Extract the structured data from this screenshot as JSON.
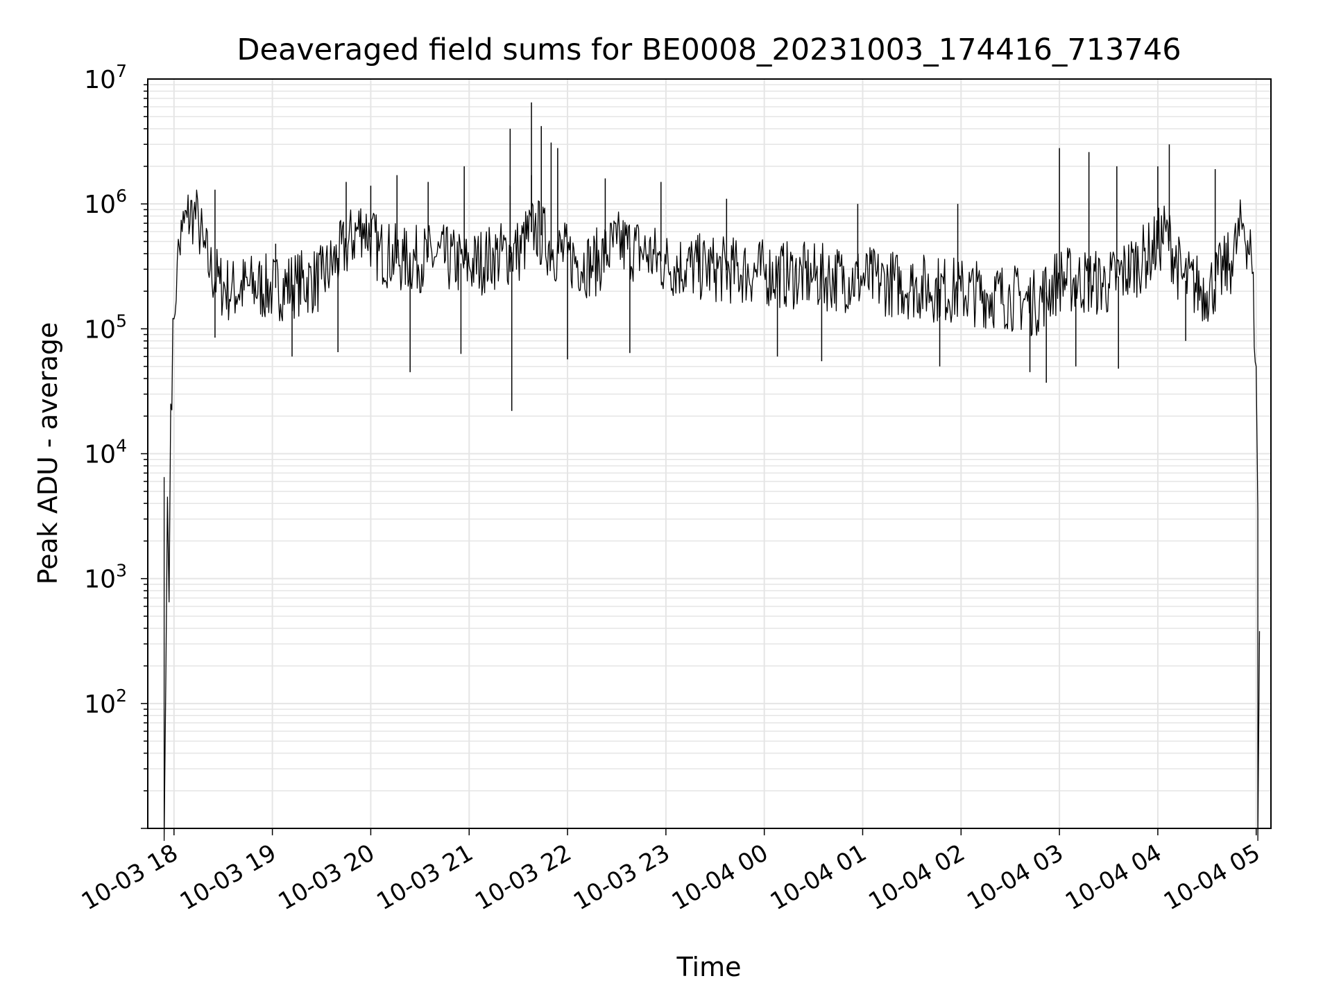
{
  "chart_data": {
    "type": "line",
    "title": "Deaveraged field sums for BE0008_20231003_174416_713746",
    "xlabel": "Time",
    "ylabel": "Peak ADU - average",
    "y_scale": "log",
    "ylim": [
      10,
      10000000
    ],
    "xlim": [
      "2023-10-03 17:44",
      "2023-10-04 05:09"
    ],
    "x_ticks": [
      "10-03 18",
      "10-03 19",
      "10-03 20",
      "10-03 21",
      "10-03 22",
      "10-03 23",
      "10-04 00",
      "10-04 01",
      "10-04 02",
      "10-04 03",
      "10-04 04",
      "10-04 05"
    ],
    "y_ticks": [
      {
        "base": "10",
        "exp": "2",
        "value": 100
      },
      {
        "base": "10",
        "exp": "3",
        "value": 1000
      },
      {
        "base": "10",
        "exp": "4",
        "value": 10000
      },
      {
        "base": "10",
        "exp": "5",
        "value": 100000
      },
      {
        "base": "10",
        "exp": "6",
        "value": 1000000
      },
      {
        "base": "10",
        "exp": "7",
        "value": 10000000
      }
    ],
    "grid": true,
    "line_color": "#000000",
    "grid_color": "#e5e5e5",
    "series": [
      {
        "points": [
          [
            "2023-10-03 17:54",
            6500
          ],
          [
            "2023-10-03 17:54",
            8
          ],
          [
            "2023-10-03 17:55",
            150
          ],
          [
            "2023-10-03 17:56",
            4500
          ],
          [
            "2023-10-03 17:57",
            650
          ],
          [
            "2023-10-03 17:58",
            25000
          ],
          [
            "2023-10-03 18:00",
            120000
          ],
          [
            "2023-10-03 18:02",
            350000
          ],
          [
            "2023-10-03 18:05",
            600000
          ],
          [
            "2023-10-03 18:08",
            780000
          ],
          [
            "2023-10-03 18:12",
            850000
          ],
          [
            "2023-10-03 18:15",
            700000
          ],
          [
            "2023-10-03 18:18",
            450000
          ],
          [
            "2023-10-03 18:22",
            300000
          ],
          [
            "2023-10-03 18:28",
            230000
          ],
          [
            "2023-10-03 18:35",
            200000
          ],
          [
            "2023-10-03 18:45",
            220000
          ],
          [
            "2023-10-03 19:00",
            210000
          ],
          [
            "2023-10-03 19:15",
            230000
          ],
          [
            "2023-10-03 19:30",
            250000
          ],
          [
            "2023-10-03 19:45",
            450000
          ],
          [
            "2023-10-03 19:55",
            700000
          ],
          [
            "2023-10-03 20:05",
            420000
          ],
          [
            "2023-10-03 20:20",
            350000
          ],
          [
            "2023-10-03 20:40",
            380000
          ],
          [
            "2023-10-03 21:00",
            320000
          ],
          [
            "2023-10-03 21:15",
            380000
          ],
          [
            "2023-10-03 21:30",
            420000
          ],
          [
            "2023-10-03 21:40",
            650000
          ],
          [
            "2023-10-03 21:50",
            450000
          ],
          [
            "2023-10-03 22:00",
            380000
          ],
          [
            "2023-10-03 22:15",
            320000
          ],
          [
            "2023-10-03 22:30",
            480000
          ],
          [
            "2023-10-03 22:45",
            420000
          ],
          [
            "2023-10-03 23:00",
            330000
          ],
          [
            "2023-10-03 23:30",
            300000
          ],
          [
            "2023-10-04 00:00",
            280000
          ],
          [
            "2023-10-04 00:30",
            260000
          ],
          [
            "2023-10-04 01:00",
            250000
          ],
          [
            "2023-10-04 01:30",
            220000
          ],
          [
            "2023-10-04 02:00",
            200000
          ],
          [
            "2023-10-04 02:30",
            180000
          ],
          [
            "2023-10-04 02:45",
            160000
          ],
          [
            "2023-10-04 03:00",
            250000
          ],
          [
            "2023-10-04 03:30",
            230000
          ],
          [
            "2023-10-04 03:55",
            400000
          ],
          [
            "2023-10-04 04:05",
            600000
          ],
          [
            "2023-10-04 04:15",
            250000
          ],
          [
            "2023-10-04 04:30",
            200000
          ],
          [
            "2023-10-04 04:45",
            350000
          ],
          [
            "2023-10-04 04:52",
            700000
          ],
          [
            "2023-10-04 04:57",
            400000
          ],
          [
            "2023-10-04 05:00",
            50000
          ],
          [
            "2023-10-04 05:01",
            3500
          ],
          [
            "2023-10-04 05:01",
            8
          ],
          [
            "2023-10-04 05:02",
            380
          ]
        ],
        "spikes": [
          [
            "2023-10-03 18:25",
            1300000
          ],
          [
            "2023-10-03 19:02",
            480000
          ],
          [
            "2023-10-03 19:45",
            1500000
          ],
          [
            "2023-10-03 20:00",
            1400000
          ],
          [
            "2023-10-03 20:16",
            1700000
          ],
          [
            "2023-10-03 20:35",
            1500000
          ],
          [
            "2023-10-03 20:57",
            2000000
          ],
          [
            "2023-10-03 21:25",
            1400000
          ],
          [
            "2023-10-03 21:38",
            1700000
          ],
          [
            "2023-10-03 21:25",
            4000000
          ],
          [
            "2023-10-03 21:38",
            6500000
          ],
          [
            "2023-10-03 21:44",
            4200000
          ],
          [
            "2023-10-03 21:50",
            3100000
          ],
          [
            "2023-10-03 21:54",
            2800000
          ],
          [
            "2023-10-03 22:23",
            1600000
          ],
          [
            "2023-10-03 22:57",
            1500000
          ],
          [
            "2023-10-03 23:37",
            1100000
          ],
          [
            "2023-10-04 00:57",
            1000000
          ],
          [
            "2023-10-04 01:58",
            1000000
          ],
          [
            "2023-10-04 03:00",
            2800000
          ],
          [
            "2023-10-04 03:18",
            2600000
          ],
          [
            "2023-10-04 03:35",
            2000000
          ],
          [
            "2023-10-04 04:00",
            2000000
          ],
          [
            "2023-10-04 04:07",
            3000000
          ],
          [
            "2023-10-04 04:35",
            1900000
          ]
        ],
        "dips": [
          [
            "2023-10-03 18:25",
            85000
          ],
          [
            "2023-10-03 19:12",
            60000
          ],
          [
            "2023-10-03 19:40",
            65000
          ],
          [
            "2023-10-03 20:24",
            45000
          ],
          [
            "2023-10-03 20:55",
            63000
          ],
          [
            "2023-10-03 21:26",
            22000
          ],
          [
            "2023-10-03 22:00",
            57000
          ],
          [
            "2023-10-03 22:38",
            64000
          ],
          [
            "2023-10-04 00:08",
            60000
          ],
          [
            "2023-10-04 00:35",
            55000
          ],
          [
            "2023-10-04 01:47",
            50000
          ],
          [
            "2023-10-04 02:42",
            45000
          ],
          [
            "2023-10-04 02:52",
            37000
          ],
          [
            "2023-10-04 03:10",
            50000
          ],
          [
            "2023-10-04 03:36",
            48000
          ],
          [
            "2023-10-04 04:17",
            80000
          ]
        ]
      }
    ]
  }
}
